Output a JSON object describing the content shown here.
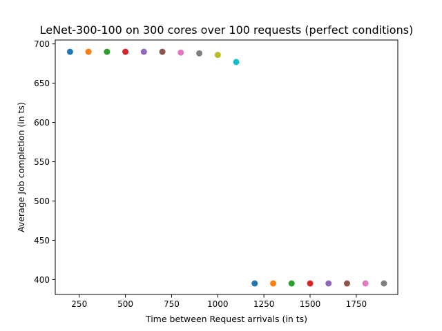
{
  "chart_data": {
    "type": "scatter",
    "title": "LeNet-300-100 on 300 cores over 100 requests (perfect conditions)",
    "xlabel": "Time between Request arrivals (in ts)",
    "ylabel": "Average Job completion (in ts)",
    "xlim": [
      120,
      1975
    ],
    "ylim": [
      381,
      705
    ],
    "xticks": [
      250,
      500,
      750,
      1000,
      1250,
      1500,
      1750
    ],
    "yticks": [
      400,
      450,
      500,
      550,
      600,
      650,
      700
    ],
    "grid": false,
    "legend": "none",
    "points": [
      {
        "x": 200,
        "y": 690,
        "color": "#1f77b4"
      },
      {
        "x": 300,
        "y": 690,
        "color": "#ff7f0e"
      },
      {
        "x": 400,
        "y": 690,
        "color": "#2ca02c"
      },
      {
        "x": 500,
        "y": 690,
        "color": "#d62728"
      },
      {
        "x": 600,
        "y": 690,
        "color": "#9467bd"
      },
      {
        "x": 700,
        "y": 690,
        "color": "#8c564b"
      },
      {
        "x": 800,
        "y": 689,
        "color": "#e377c2"
      },
      {
        "x": 900,
        "y": 688,
        "color": "#7f7f7f"
      },
      {
        "x": 1000,
        "y": 686,
        "color": "#bcbd22"
      },
      {
        "x": 1100,
        "y": 677,
        "color": "#17becf"
      },
      {
        "x": 1200,
        "y": 395,
        "color": "#1f77b4"
      },
      {
        "x": 1300,
        "y": 395,
        "color": "#ff7f0e"
      },
      {
        "x": 1400,
        "y": 395,
        "color": "#2ca02c"
      },
      {
        "x": 1500,
        "y": 395,
        "color": "#d62728"
      },
      {
        "x": 1600,
        "y": 395,
        "color": "#9467bd"
      },
      {
        "x": 1700,
        "y": 395,
        "color": "#8c564b"
      },
      {
        "x": 1800,
        "y": 395,
        "color": "#e377c2"
      },
      {
        "x": 1900,
        "y": 395,
        "color": "#7f7f7f"
      }
    ]
  }
}
